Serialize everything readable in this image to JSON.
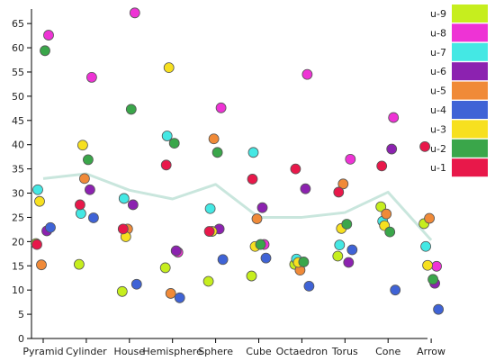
{
  "chart_data": {
    "type": "scatter",
    "categories": [
      "Pyramid",
      "Cylinder",
      "House",
      "Hemisphere",
      "Sphere",
      "Cube",
      "Octaedron",
      "Torus",
      "Cone",
      "Arrow"
    ],
    "ylim": [
      0,
      68
    ],
    "yticks": [
      0,
      5,
      10,
      15,
      20,
      25,
      30,
      35,
      40,
      45,
      50,
      55,
      60,
      65
    ],
    "legend_placement": "right",
    "grid": false,
    "series": [
      {
        "name": "u-9",
        "color": "#c6ee1e",
        "values": [
          19.6,
          15.3,
          9.7,
          14.6,
          11.8,
          12.9,
          15.3,
          17.0,
          27.2,
          23.7
        ]
      },
      {
        "name": "u-8",
        "color": "#ee33d5",
        "values": [
          62.6,
          53.9,
          67.2,
          17.8,
          47.6,
          19.4,
          54.5,
          37.0,
          45.6,
          14.9
        ]
      },
      {
        "name": "u-7",
        "color": "#44e8e4",
        "values": [
          30.7,
          25.8,
          28.9,
          41.8,
          26.8,
          38.4,
          16.4,
          19.3,
          24.2,
          19.0
        ]
      },
      {
        "name": "u-6",
        "color": "#8c22b0",
        "values": [
          22.2,
          30.7,
          27.6,
          18.1,
          22.6,
          27.0,
          30.9,
          15.7,
          39.1,
          11.4
        ]
      },
      {
        "name": "u-5",
        "color": "#f08a38",
        "values": [
          15.2,
          33.0,
          22.6,
          9.3,
          41.2,
          24.7,
          14.1,
          31.9,
          25.7,
          24.8
        ]
      },
      {
        "name": "u-4",
        "color": "#3f63d6",
        "values": [
          22.9,
          24.9,
          11.2,
          8.4,
          16.3,
          16.6,
          10.8,
          18.3,
          10.0,
          6.0
        ]
      },
      {
        "name": "u-3",
        "color": "#f7e01f",
        "values": [
          28.3,
          39.9,
          21.0,
          55.9,
          22.1,
          19.0,
          15.7,
          22.7,
          23.3,
          15.1
        ]
      },
      {
        "name": "u-2",
        "color": "#3aa64a",
        "values": [
          59.4,
          36.9,
          47.3,
          40.3,
          38.4,
          19.4,
          15.8,
          23.6,
          22.0,
          12.2
        ]
      },
      {
        "name": "u-1",
        "color": "#e8184a",
        "values": [
          19.4,
          27.6,
          22.6,
          35.8,
          22.1,
          32.9,
          35.0,
          30.2,
          35.6,
          39.6
        ]
      }
    ],
    "trend": {
      "color": "#c9e6dd",
      "values": [
        33.0,
        34.0,
        30.6,
        28.8,
        31.8,
        25.0,
        25.0,
        26.0,
        30.2,
        20.3
      ]
    }
  }
}
